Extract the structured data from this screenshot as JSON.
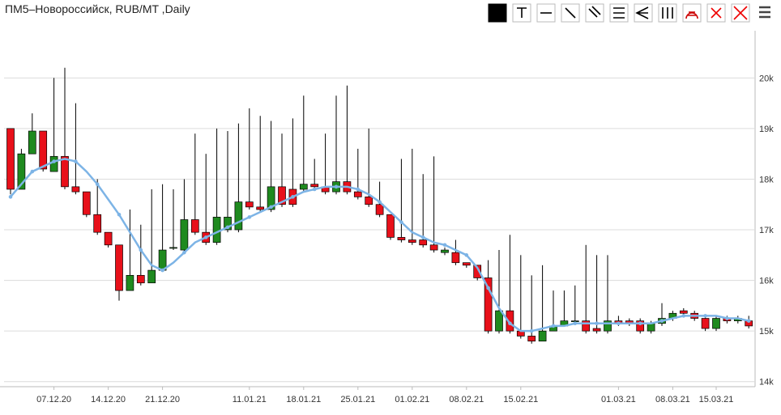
{
  "chart_data": {
    "type": "candlestick",
    "title": "ПМ5–Новороссийск, RUB/MT ,Daily",
    "categories": [
      null,
      null,
      null,
      null,
      "07.12.20",
      null,
      null,
      null,
      null,
      "14.12.20",
      null,
      null,
      null,
      null,
      "21.12.20",
      null,
      null,
      null,
      null,
      null,
      null,
      null,
      "11.01.21",
      null,
      null,
      null,
      null,
      "18.01.21",
      null,
      null,
      null,
      null,
      "25.01.21",
      null,
      null,
      null,
      null,
      "01.02.21",
      null,
      null,
      null,
      null,
      "08.02.21",
      null,
      null,
      null,
      null,
      "15.02.21",
      null,
      null,
      null,
      null,
      null,
      null,
      null,
      null,
      "01.03.21",
      null,
      null,
      null,
      null,
      "08.03.21",
      null,
      null,
      null,
      "15.03.21",
      null,
      null,
      null
    ],
    "open": [
      19000,
      17800,
      18500,
      18950,
      18150,
      18450,
      17850,
      17750,
      17300,
      16950,
      16700,
      15800,
      16100,
      15950,
      16200,
      16650,
      16600,
      17200,
      16950,
      16750,
      17000,
      17000,
      17550,
      17450,
      17400,
      17850,
      17800,
      17800,
      17900,
      17850,
      17750,
      17950,
      17750,
      17650,
      17500,
      17300,
      16850,
      16800,
      16800,
      16700,
      16550,
      16550,
      16350,
      16300,
      16050,
      15000,
      15400,
      15000,
      14900,
      14800,
      15000,
      15100,
      15200,
      15200,
      15050,
      15000,
      15200,
      15200,
      15200,
      15000,
      15150,
      15250,
      15400,
      15350,
      15250,
      15050,
      15250,
      15200,
      15200
    ],
    "high": [
      19000,
      18600,
      19300,
      18950,
      20000,
      20200,
      19500,
      17750,
      18000,
      16950,
      16700,
      17400,
      17100,
      17800,
      17900,
      17800,
      18000,
      18900,
      18500,
      19000,
      18950,
      19100,
      19400,
      19250,
      19150,
      18900,
      19200,
      19650,
      18400,
      18900,
      19650,
      19850,
      18600,
      19000,
      17950,
      17300,
      18400,
      18600,
      18100,
      18450,
      16650,
      16800,
      16350,
      16300,
      16400,
      16600,
      16900,
      16500,
      16100,
      16300,
      15800,
      15800,
      15900,
      16700,
      16500,
      16500,
      15300,
      15250,
      15250,
      15200,
      15550,
      15400,
      15450,
      15400,
      15300,
      15300,
      15300,
      15300,
      15300
    ],
    "low": [
      17700,
      17800,
      18500,
      18150,
      18150,
      17800,
      17700,
      17250,
      16900,
      16650,
      15600,
      15800,
      15900,
      15950,
      16200,
      16600,
      16550,
      16900,
      16700,
      16700,
      16950,
      16950,
      17400,
      17350,
      17350,
      17450,
      17450,
      17750,
      17800,
      17700,
      17700,
      17700,
      17600,
      17450,
      17250,
      16800,
      16750,
      16700,
      16650,
      16550,
      16500,
      16300,
      16250,
      16000,
      14950,
      14950,
      14950,
      14850,
      14750,
      14800,
      15000,
      15100,
      15150,
      14950,
      14950,
      14950,
      15100,
      15100,
      14950,
      14950,
      15100,
      15200,
      15300,
      15200,
      15000,
      15000,
      15150,
      15150,
      15050
    ],
    "close": [
      17800,
      18500,
      18950,
      18200,
      18450,
      17850,
      17750,
      17300,
      16950,
      16700,
      15800,
      16100,
      15950,
      16200,
      16600,
      16650,
      17200,
      16950,
      16750,
      17250,
      17250,
      17550,
      17450,
      17400,
      17850,
      17500,
      17500,
      17900,
      17850,
      17750,
      17950,
      17750,
      17650,
      17500,
      17300,
      16850,
      16800,
      16750,
      16700,
      16600,
      16600,
      16350,
      16300,
      16050,
      15000,
      15400,
      15000,
      14900,
      14800,
      15000,
      15100,
      15200,
      15200,
      15000,
      15000,
      15200,
      15150,
      15150,
      15000,
      15150,
      15250,
      15350,
      15350,
      15250,
      15050,
      15250,
      15200,
      15250,
      15100
    ],
    "up_color": "#1f8a1f",
    "down_color": "#e8101a",
    "line": {
      "color": "#7db4e6",
      "values": [
        17650,
        17900,
        18150,
        18250,
        18350,
        18400,
        18350,
        18150,
        17900,
        17600,
        17300,
        16950,
        16600,
        16300,
        16200,
        16350,
        16550,
        16750,
        16850,
        16950,
        17050,
        17150,
        17250,
        17350,
        17450,
        17550,
        17650,
        17750,
        17800,
        17850,
        17850,
        17850,
        17800,
        17700,
        17550,
        17350,
        17150,
        16950,
        16850,
        16750,
        16700,
        16600,
        16500,
        16250,
        15850,
        15450,
        15150,
        15000,
        15000,
        15050,
        15100,
        15100,
        15150,
        15150,
        15150,
        15150,
        15150,
        15150,
        15150,
        15150,
        15200,
        15250,
        15300,
        15300,
        15300,
        15300,
        15250,
        15250,
        15200
      ]
    },
    "ylim": [
      13900,
      20900
    ],
    "yticks": [
      {
        "value": 14000,
        "label": "14k"
      },
      {
        "value": 15000,
        "label": "15k"
      },
      {
        "value": 16000,
        "label": "16k"
      },
      {
        "value": 17000,
        "label": "17k"
      },
      {
        "value": 18000,
        "label": "18k"
      },
      {
        "value": 19000,
        "label": "19k"
      },
      {
        "value": 20000,
        "label": "20k"
      }
    ],
    "grid": true
  }
}
